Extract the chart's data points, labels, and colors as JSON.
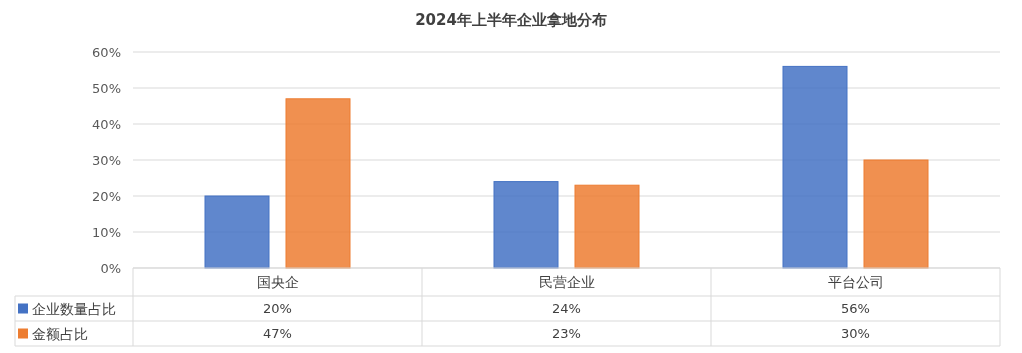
{
  "chart_data": {
    "type": "bar",
    "title": "2024年上半年企业拿地分布",
    "categories": [
      "国央企",
      "民营企业",
      "平台公司"
    ],
    "series": [
      {
        "name": "企业数量占比",
        "color": "#4472c4",
        "values": [
          20,
          24,
          56
        ],
        "value_labels": [
          "20%",
          "24%",
          "56%"
        ]
      },
      {
        "name": "金额占比",
        "color": "#ed7d31",
        "values": [
          47,
          23,
          30
        ],
        "value_labels": [
          "47%",
          "23%",
          "30%"
        ]
      }
    ],
    "ylim": [
      0,
      60
    ],
    "yticks": [
      {
        "value": 0,
        "label": "0%"
      },
      {
        "value": 10,
        "label": "10%"
      },
      {
        "value": 20,
        "label": "20%"
      },
      {
        "value": 30,
        "label": "30%"
      },
      {
        "value": 40,
        "label": "40%"
      },
      {
        "value": 50,
        "label": "50%"
      },
      {
        "value": 60,
        "label": "60%"
      }
    ],
    "grid": "y",
    "legend": "bottom left"
  }
}
